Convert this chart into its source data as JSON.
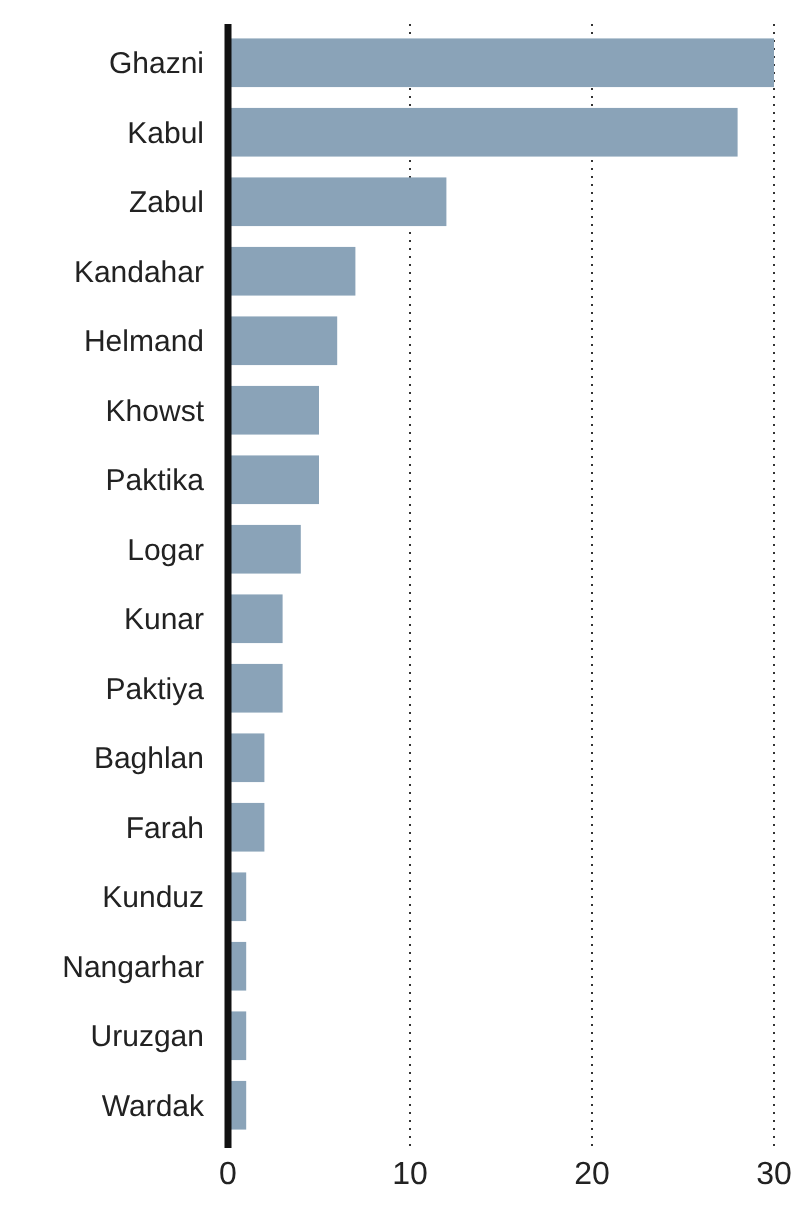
{
  "chart_data": {
    "type": "bar",
    "orientation": "horizontal",
    "categories": [
      "Ghazni",
      "Kabul",
      "Zabul",
      "Kandahar",
      "Helmand",
      "Khowst",
      "Paktika",
      "Logar",
      "Kunar",
      "Paktiya",
      "Baghlan",
      "Farah",
      "Kunduz",
      "Nangarhar",
      "Uruzgan",
      "Wardak"
    ],
    "values": [
      30,
      28,
      12,
      7,
      6,
      5,
      5,
      4,
      3,
      3,
      2,
      2,
      1,
      1,
      1,
      1
    ],
    "color": "#8aa3b8",
    "xlim": [
      0,
      30
    ],
    "xticks": [
      0,
      10,
      20,
      30
    ],
    "grid": "x"
  }
}
